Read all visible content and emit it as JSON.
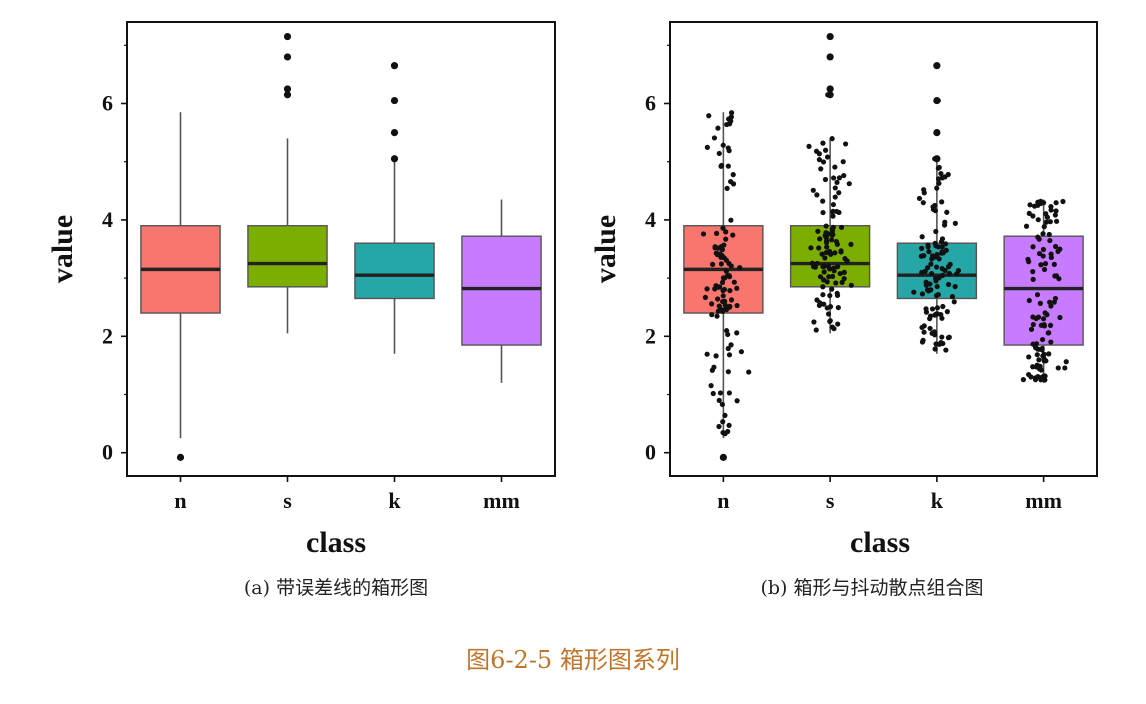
{
  "figure_title": "图6-2-5 箱形图系列",
  "chart_data": [
    {
      "type": "box",
      "caption": "(a) 带误差线的箱形图",
      "xlabel": "class",
      "ylabel": "value",
      "categories": [
        "n",
        "s",
        "k",
        "mm"
      ],
      "yticks": [
        0,
        2,
        4,
        6
      ],
      "ylim": [
        -0.4,
        7.4
      ],
      "jitter": false,
      "grid": false,
      "colors": [
        "#f8766d",
        "#7cae00",
        "#26a6a6",
        "#c77cff"
      ],
      "boxes": [
        {
          "category": "n",
          "whisker_low": 0.25,
          "q1": 2.4,
          "median": 3.15,
          "q3": 3.9,
          "whisker_high": 5.85,
          "outliers": [
            -0.08
          ]
        },
        {
          "category": "s",
          "whisker_low": 2.05,
          "q1": 2.85,
          "median": 3.25,
          "q3": 3.9,
          "whisker_high": 5.4,
          "outliers": [
            6.15,
            6.25,
            6.8,
            7.15
          ]
        },
        {
          "category": "k",
          "whisker_low": 1.7,
          "q1": 2.65,
          "median": 3.05,
          "q3": 3.6,
          "whisker_high": 5.0,
          "outliers": [
            5.05,
            5.5,
            6.05,
            6.65
          ]
        },
        {
          "category": "mm",
          "whisker_low": 1.2,
          "q1": 1.85,
          "median": 2.82,
          "q3": 3.72,
          "whisker_high": 4.35,
          "outliers": []
        }
      ]
    },
    {
      "type": "box",
      "caption": "(b) 箱形与抖动散点组合图",
      "xlabel": "class",
      "ylabel": "value",
      "categories": [
        "n",
        "s",
        "k",
        "mm"
      ],
      "yticks": [
        0,
        2,
        4,
        6
      ],
      "ylim": [
        -0.4,
        7.4
      ],
      "jitter": true,
      "grid": false,
      "colors": [
        "#f8766d",
        "#7cae00",
        "#26a6a6",
        "#c77cff"
      ],
      "boxes": [
        {
          "category": "n",
          "whisker_low": 0.25,
          "q1": 2.4,
          "median": 3.15,
          "q3": 3.9,
          "whisker_high": 5.85,
          "outliers": [
            -0.08
          ]
        },
        {
          "category": "s",
          "whisker_low": 2.05,
          "q1": 2.85,
          "median": 3.25,
          "q3": 3.9,
          "whisker_high": 5.4,
          "outliers": [
            6.15,
            6.25,
            6.8,
            7.15
          ]
        },
        {
          "category": "k",
          "whisker_low": 1.7,
          "q1": 2.65,
          "median": 3.05,
          "q3": 3.6,
          "whisker_high": 5.0,
          "outliers": [
            5.05,
            5.5,
            6.05,
            6.65
          ]
        },
        {
          "category": "mm",
          "whisker_low": 1.2,
          "q1": 1.85,
          "median": 2.82,
          "q3": 3.72,
          "whisker_high": 4.35,
          "outliers": []
        }
      ]
    }
  ]
}
